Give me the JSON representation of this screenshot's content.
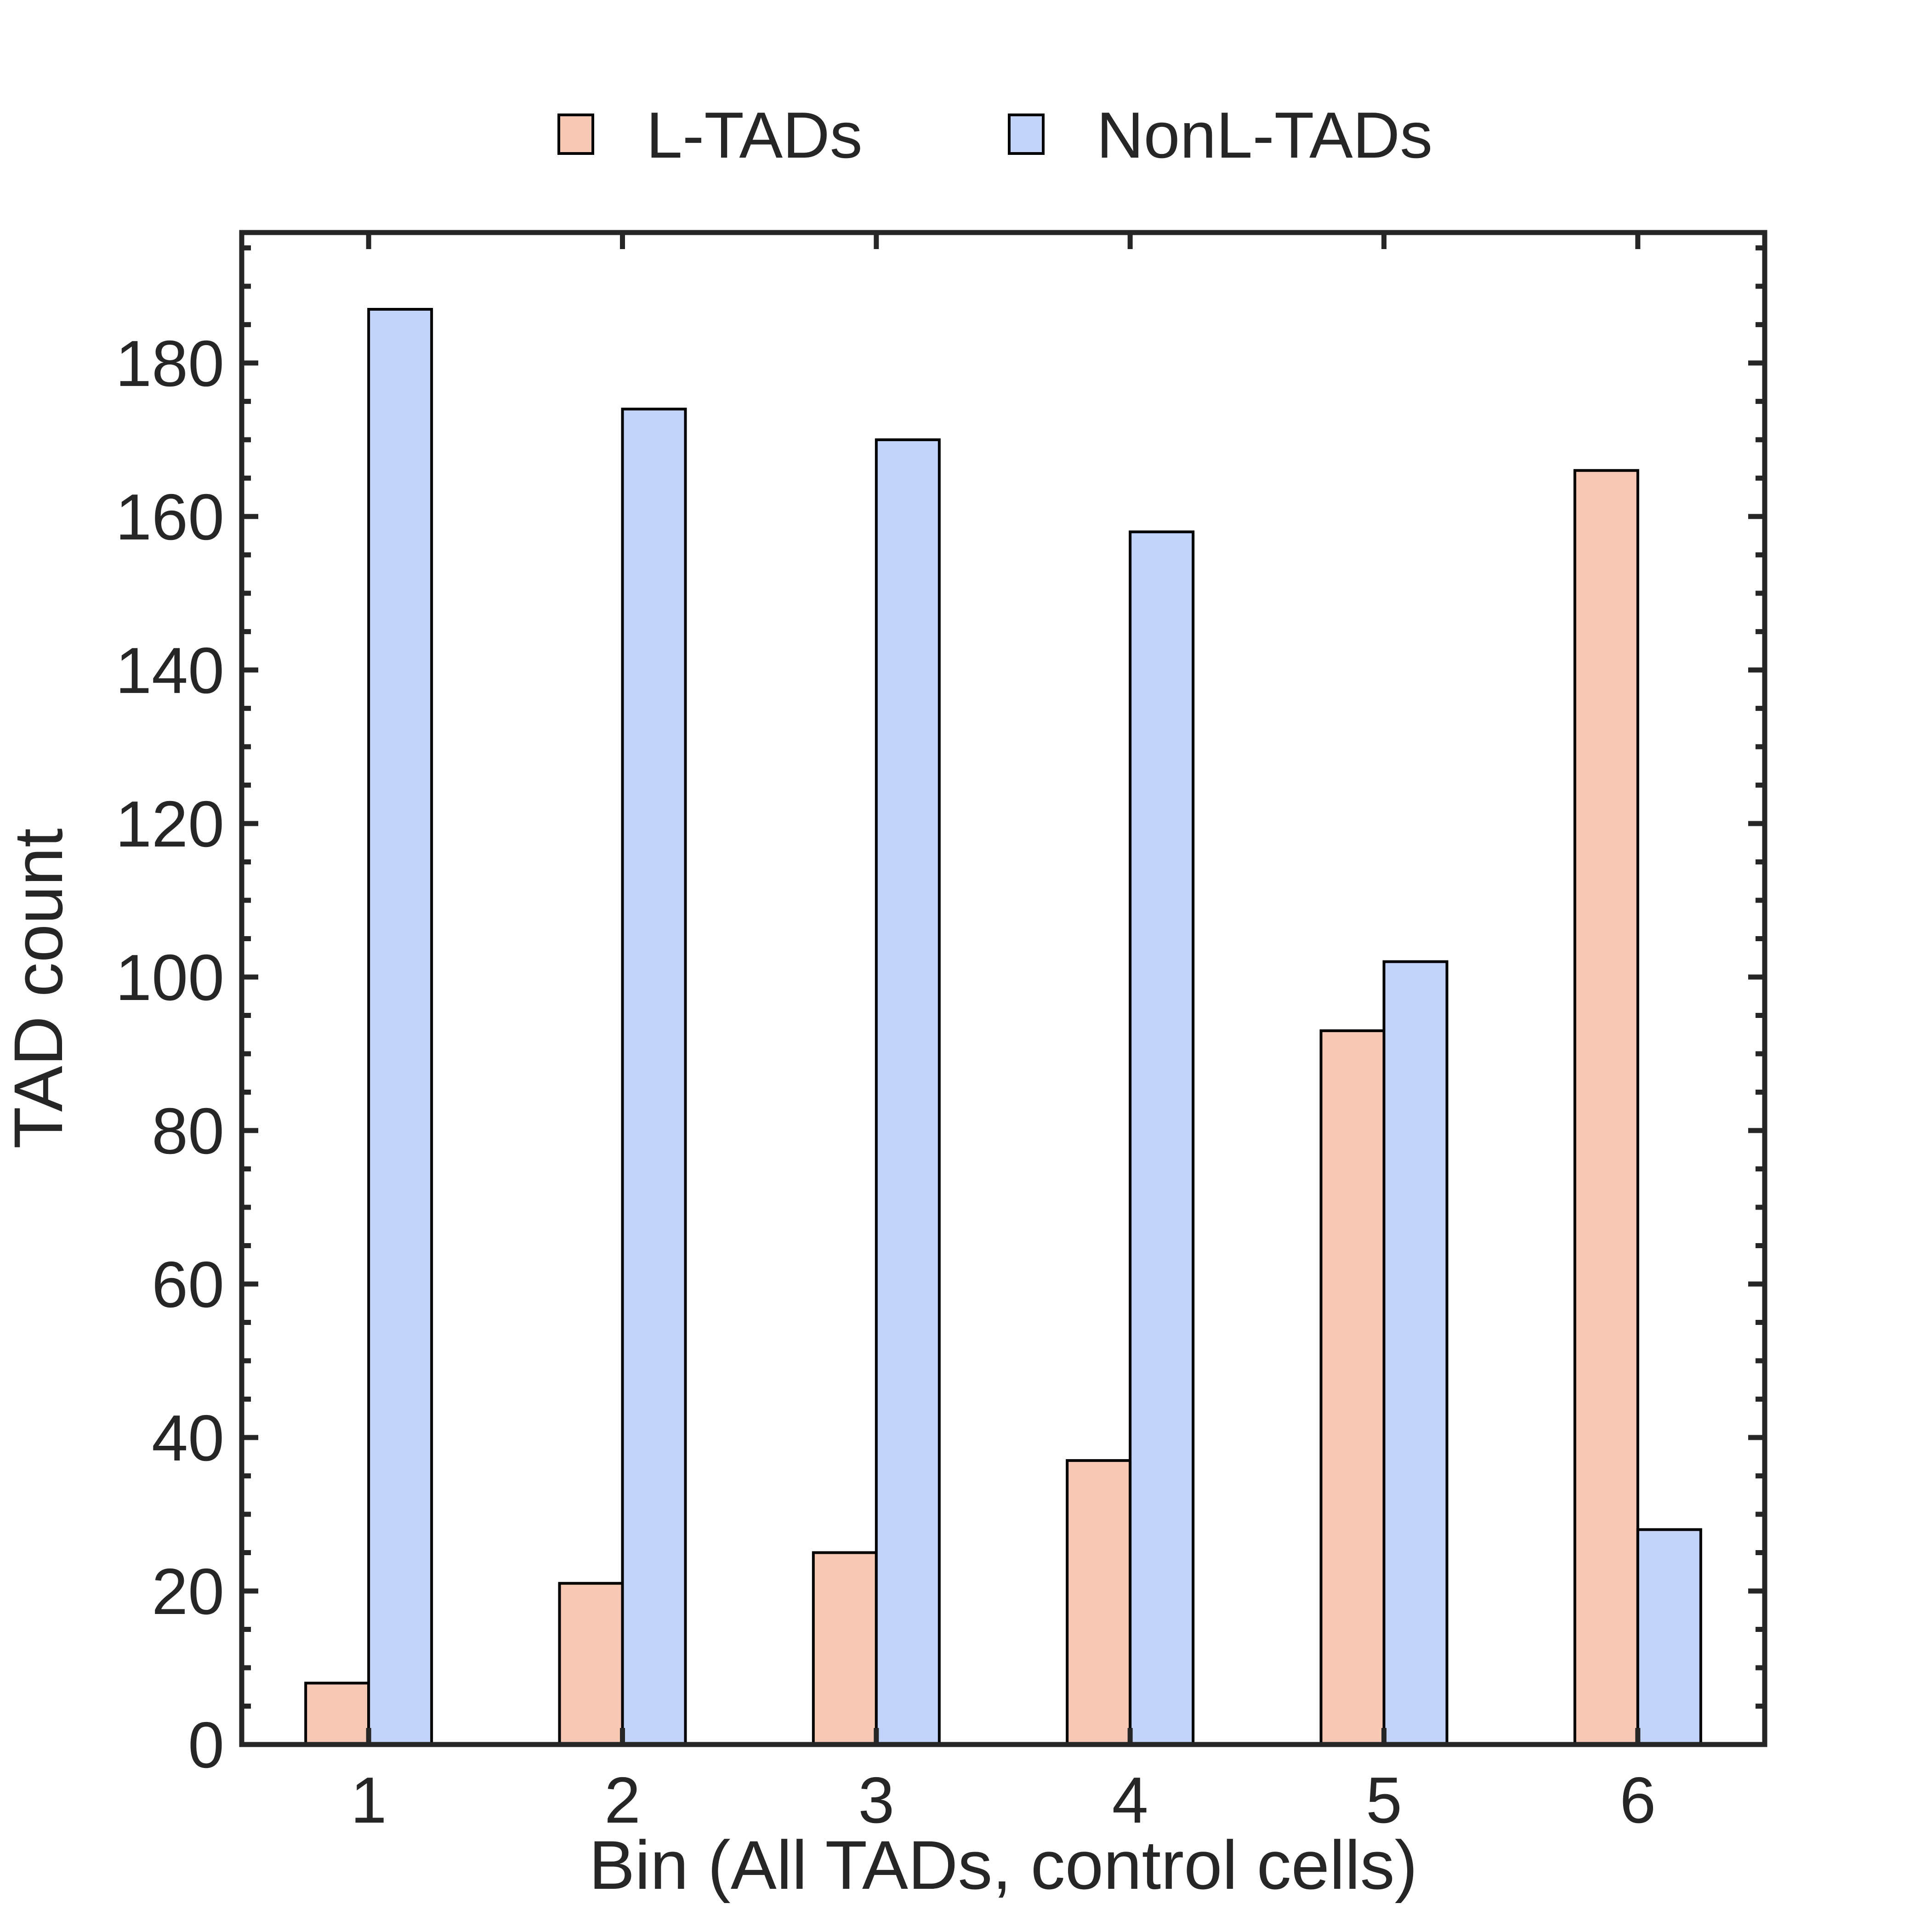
{
  "chart_data": {
    "type": "bar",
    "title": "",
    "xlabel": "Bin (All TADs, control cells)",
    "ylabel": "TAD count",
    "categories": [
      "1",
      "2",
      "3",
      "4",
      "5",
      "6"
    ],
    "ylim": [
      0,
      197
    ],
    "yticks": [
      0,
      20,
      40,
      60,
      80,
      100,
      120,
      140,
      160,
      180
    ],
    "yminor_step": 5,
    "grid": false,
    "legend_position": "top-center",
    "series": [
      {
        "name": "L-TADs",
        "color": "#f7c8b3",
        "values": [
          8,
          21,
          25,
          37,
          93,
          166
        ]
      },
      {
        "name": "NonL-TADs",
        "color": "#c3d4fb",
        "values": [
          187,
          174,
          170,
          158,
          102,
          28
        ]
      }
    ],
    "axis_color": "#262626",
    "bar_edge_color": "#000000"
  }
}
